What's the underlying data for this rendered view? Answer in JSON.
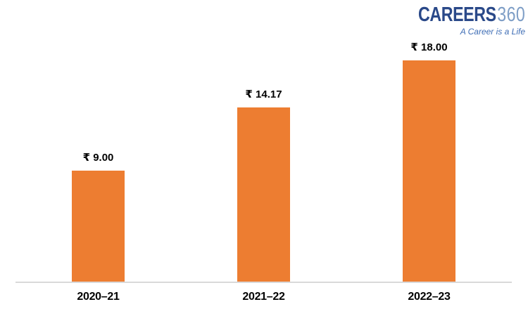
{
  "logo": {
    "brand": "CAREERS",
    "suffix": "360",
    "tagline": "A Career is a Life",
    "brand_color": "#2A4989",
    "suffix_color": "#7E9EC6",
    "tagline_color": "#3E6DB5"
  },
  "chart_data": {
    "type": "bar",
    "categories": [
      "2020–21",
      "2021–22",
      "2022–23"
    ],
    "values": [
      9.0,
      14.17,
      18.0
    ],
    "data_labels": [
      "₹ 9.00",
      "₹ 14.17",
      "₹ 18.00"
    ],
    "title": "",
    "xlabel": "",
    "ylabel": "",
    "ylim": [
      0,
      20
    ],
    "grid": false,
    "legend": false,
    "bar_color": "#ED7D31",
    "axis_line_color": "#D9D9D9",
    "label_color": "#000000"
  }
}
